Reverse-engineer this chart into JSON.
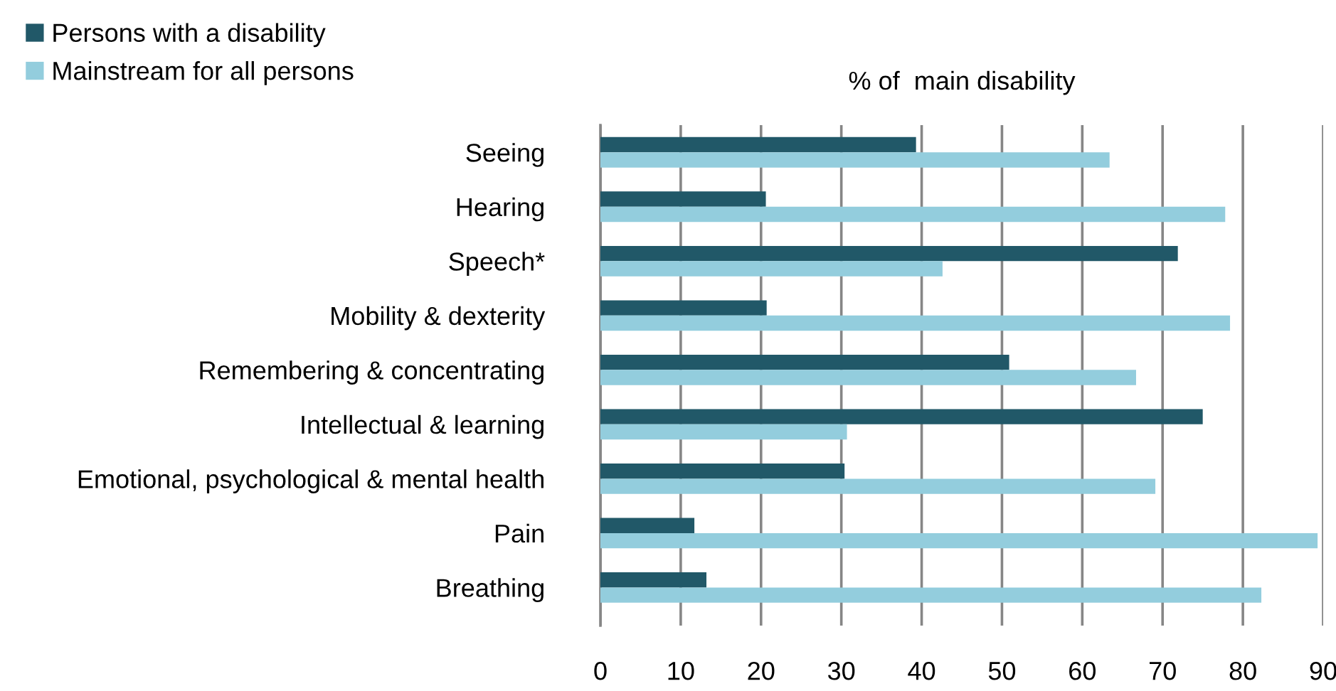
{
  "chart_data": {
    "type": "bar",
    "orientation": "horizontal",
    "xlabel": "% of  main disability",
    "categories": [
      "Seeing",
      "Hearing",
      "Speech*",
      "Mobility & dexterity",
      "Remembering & concentrating",
      "Intellectual & learning",
      "Emotional, psychological & mental health",
      "Pain",
      "Breathing"
    ],
    "series": [
      {
        "name": "Persons with a disability",
        "color": "#215868",
        "values": [
          39.3,
          20.6,
          71.9,
          20.7,
          50.9,
          75.0,
          30.4,
          11.7,
          13.2
        ]
      },
      {
        "name": "Mainstream for all persons",
        "color": "#93cddd",
        "values": [
          63.4,
          77.8,
          42.6,
          78.4,
          66.7,
          30.7,
          69.1,
          89.3,
          82.3
        ]
      }
    ],
    "xlim": [
      0,
      90
    ],
    "xticks": [
      0,
      10,
      20,
      30,
      40,
      50,
      60,
      70,
      80,
      90
    ],
    "grid": "x",
    "legend": "top left"
  }
}
